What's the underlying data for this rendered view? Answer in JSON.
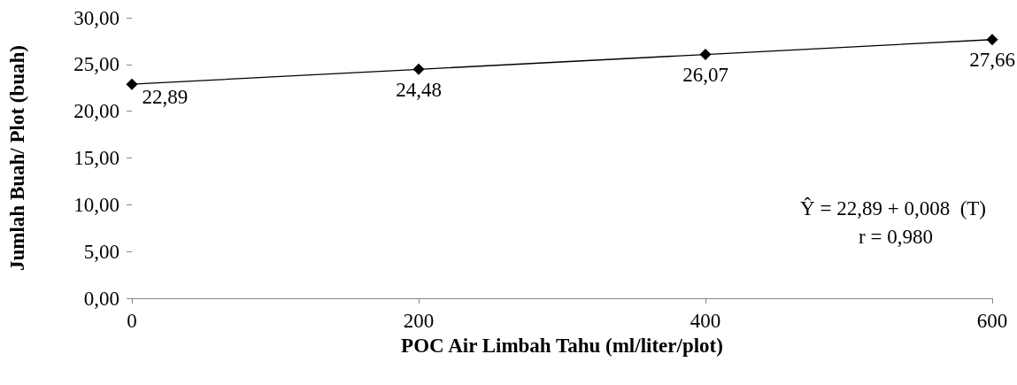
{
  "chart_data": {
    "type": "line",
    "xlabel": "POC Air Limbah Tahu (ml/liter/plot)",
    "ylabel": "Jumlah Buah/ Plot (buah)",
    "x": [
      0,
      200,
      400,
      600
    ],
    "series": [
      {
        "color": "#000000",
        "values": [
          22.89,
          24.48,
          26.07,
          27.66
        ],
        "value_labels": [
          "22,89",
          "24,48",
          "26,07",
          "27,66"
        ]
      }
    ],
    "xlim": [
      0,
      600
    ],
    "xticks": [
      0,
      200,
      400,
      600
    ],
    "ylim": [
      0,
      30
    ],
    "yticks": [
      {
        "value": 0,
        "label": "0,00"
      },
      {
        "value": 5,
        "label": "5,00"
      },
      {
        "value": 10,
        "label": "10,00"
      },
      {
        "value": 15,
        "label": "15,00"
      },
      {
        "value": 20,
        "label": "20,00"
      },
      {
        "value": 25,
        "label": "25,00"
      },
      {
        "value": 30,
        "label": "30,00"
      }
    ],
    "marker": "diamond",
    "line_style": "solid",
    "grid": false,
    "annotations": [
      "Ŷ = 22,89 + 0,008  (T)",
      "r = 0,980"
    ]
  }
}
